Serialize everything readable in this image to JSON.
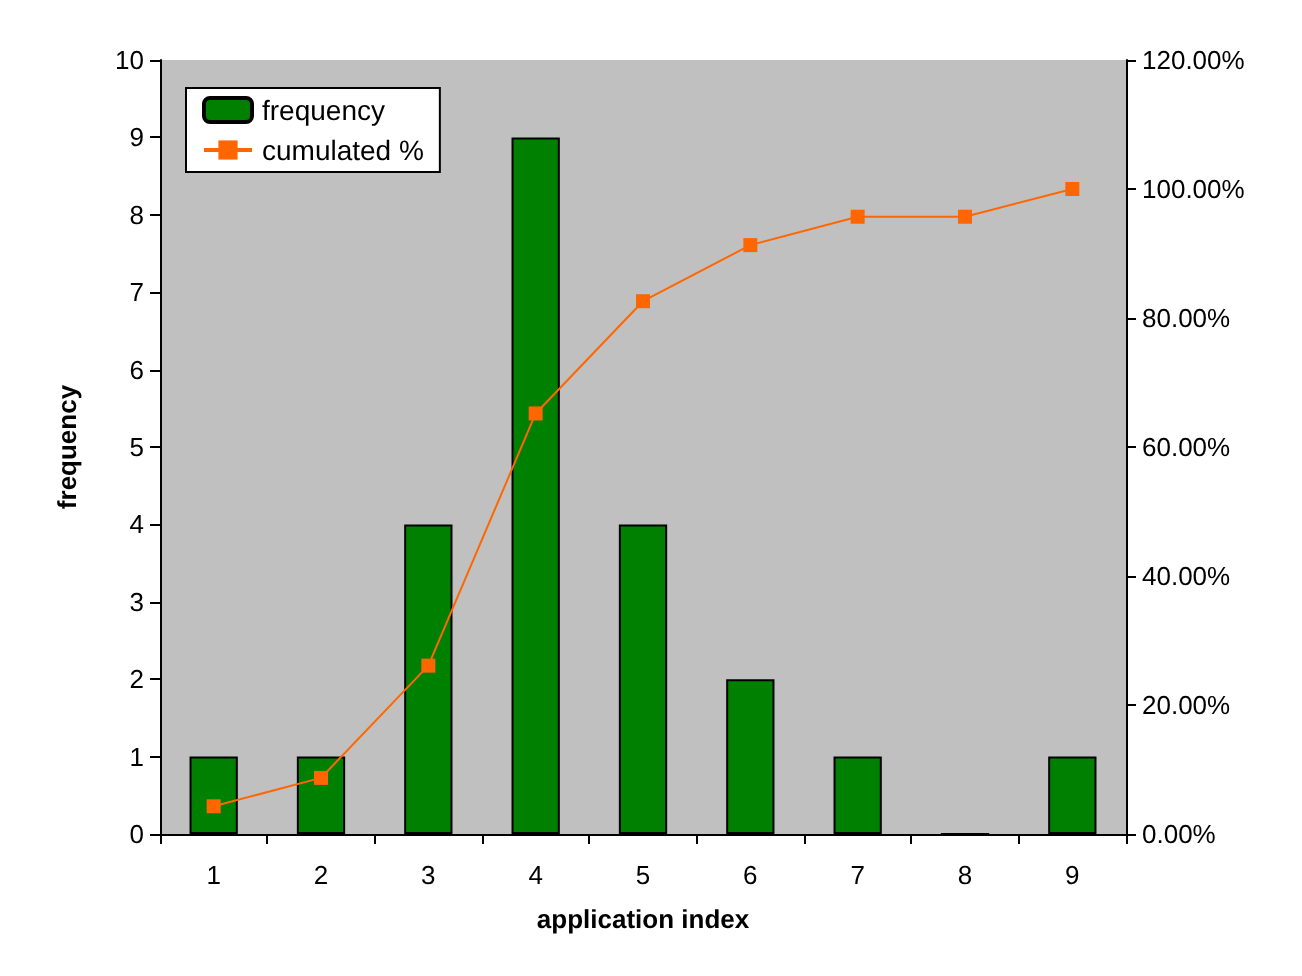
{
  "chart_data": {
    "type": "bar",
    "xlabel": "application index",
    "ylabel": "frequency",
    "categories": [
      "1",
      "2",
      "3",
      "4",
      "5",
      "6",
      "7",
      "8",
      "9"
    ],
    "series": [
      {
        "name": "frequency",
        "color": "#008000",
        "values": [
          1,
          1,
          4,
          9,
          4,
          2,
          1,
          0,
          1
        ]
      },
      {
        "name": "cumulated %",
        "type": "line",
        "axis": "y2",
        "color": "#ff6600",
        "marker": "square",
        "values": [
          4.3,
          8.7,
          26.1,
          65.2,
          82.6,
          91.3,
          95.7,
          95.7,
          100
        ]
      }
    ],
    "ylim": [
      0,
      10
    ],
    "yticks": [
      0,
      1,
      2,
      3,
      4,
      5,
      6,
      7,
      8,
      9,
      10
    ],
    "y2lim": [
      0,
      120
    ],
    "y2ticks": [
      {
        "value": 0,
        "label": "0.00%"
      },
      {
        "value": 20,
        "label": "20.00%"
      },
      {
        "value": 40,
        "label": "40.00%"
      },
      {
        "value": 60,
        "label": "60.00%"
      },
      {
        "value": 80,
        "label": "80.00%"
      },
      {
        "value": 100,
        "label": "100.00%"
      },
      {
        "value": 120,
        "label": "120.00%"
      }
    ],
    "grid": false,
    "legend": "top left"
  }
}
